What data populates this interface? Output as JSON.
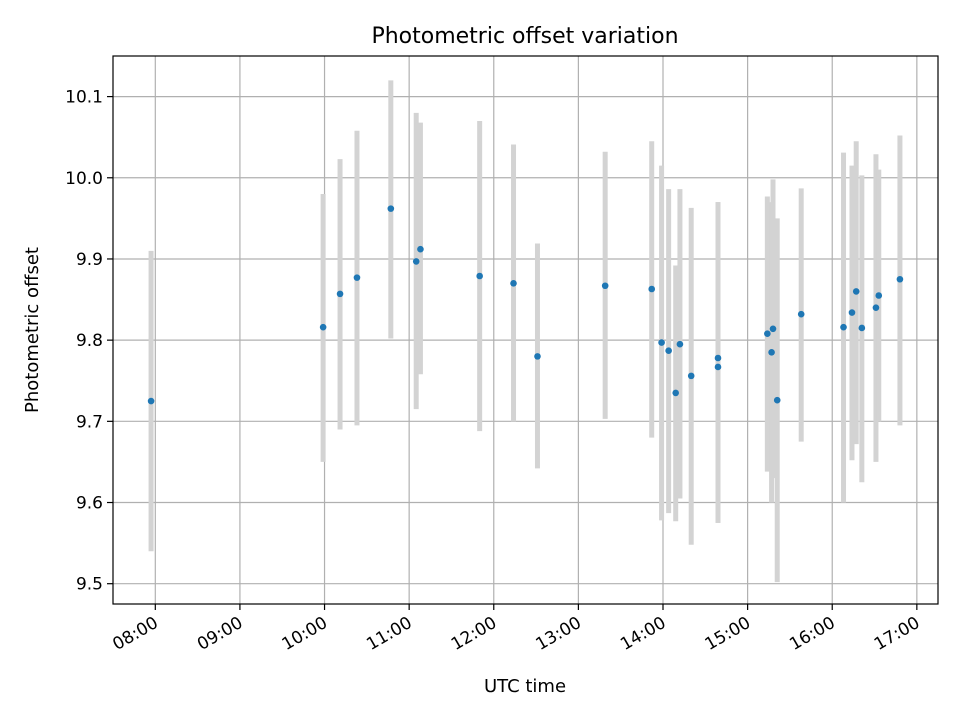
{
  "chart_data": {
    "type": "scatter",
    "title": "Photometric offset variation",
    "xlabel": "UTC time",
    "ylabel": "Photometric offset",
    "xlim": [
      "07:30",
      "17:15"
    ],
    "ylim": [
      9.475,
      10.15
    ],
    "grid": true,
    "colors": {
      "point": "#1f77b4",
      "errorbar": "#d3d3d3"
    },
    "x_ticks": [
      "08:00",
      "09:00",
      "10:00",
      "11:00",
      "12:00",
      "13:00",
      "14:00",
      "15:00",
      "16:00",
      "17:00"
    ],
    "y_ticks": [
      "9.5",
      "9.6",
      "9.7",
      "9.8",
      "9.9",
      "10.0",
      "10.1"
    ],
    "points": [
      {
        "t": "07:57",
        "y": 9.725,
        "lo": 9.54,
        "hi": 9.91
      },
      {
        "t": "09:59",
        "y": 9.816,
        "lo": 9.65,
        "hi": 9.98
      },
      {
        "t": "10:11",
        "y": 9.857,
        "lo": 9.69,
        "hi": 10.023
      },
      {
        "t": "10:23",
        "y": 9.877,
        "lo": 9.695,
        "hi": 10.058
      },
      {
        "t": "10:47",
        "y": 9.962,
        "lo": 9.802,
        "hi": 10.12
      },
      {
        "t": "11:05",
        "y": 9.897,
        "lo": 9.715,
        "hi": 10.08
      },
      {
        "t": "11:08",
        "y": 9.912,
        "lo": 9.758,
        "hi": 10.068
      },
      {
        "t": "11:50",
        "y": 9.879,
        "lo": 9.688,
        "hi": 10.07
      },
      {
        "t": "12:14",
        "y": 9.87,
        "lo": 9.7,
        "hi": 10.041
      },
      {
        "t": "12:31",
        "y": 9.78,
        "lo": 9.642,
        "hi": 9.919
      },
      {
        "t": "13:19",
        "y": 9.867,
        "lo": 9.703,
        "hi": 10.032
      },
      {
        "t": "13:52",
        "y": 9.863,
        "lo": 9.68,
        "hi": 10.045
      },
      {
        "t": "13:59",
        "y": 9.797,
        "lo": 9.578,
        "hi": 10.015
      },
      {
        "t": "14:04",
        "y": 9.787,
        "lo": 9.587,
        "hi": 9.986
      },
      {
        "t": "14:09",
        "y": 9.735,
        "lo": 9.577,
        "hi": 9.892
      },
      {
        "t": "14:12",
        "y": 9.795,
        "lo": 9.605,
        "hi": 9.986
      },
      {
        "t": "14:20",
        "y": 9.756,
        "lo": 9.548,
        "hi": 9.963
      },
      {
        "t": "14:39",
        "y": 9.767,
        "lo": 9.575,
        "hi": 9.97
      },
      {
        "t": "14:39",
        "y": 9.778,
        "lo": 9.575,
        "hi": 9.97
      },
      {
        "t": "15:14",
        "y": 9.808,
        "lo": 9.638,
        "hi": 9.977
      },
      {
        "t": "15:17",
        "y": 9.785,
        "lo": 9.6,
        "hi": 9.97
      },
      {
        "t": "15:18",
        "y": 9.814,
        "lo": 9.63,
        "hi": 9.998
      },
      {
        "t": "15:21",
        "y": 9.726,
        "lo": 9.502,
        "hi": 9.95
      },
      {
        "t": "15:38",
        "y": 9.832,
        "lo": 9.675,
        "hi": 9.987
      },
      {
        "t": "16:08",
        "y": 9.816,
        "lo": 9.6,
        "hi": 10.031
      },
      {
        "t": "16:14",
        "y": 9.834,
        "lo": 9.652,
        "hi": 10.015
      },
      {
        "t": "16:17",
        "y": 9.86,
        "lo": 9.672,
        "hi": 10.045
      },
      {
        "t": "16:21",
        "y": 9.815,
        "lo": 9.625,
        "hi": 10.003
      },
      {
        "t": "16:31",
        "y": 9.84,
        "lo": 9.65,
        "hi": 10.029
      },
      {
        "t": "16:33",
        "y": 9.855,
        "lo": 9.7,
        "hi": 10.01
      },
      {
        "t": "16:48",
        "y": 9.875,
        "lo": 9.695,
        "hi": 10.052
      }
    ]
  }
}
